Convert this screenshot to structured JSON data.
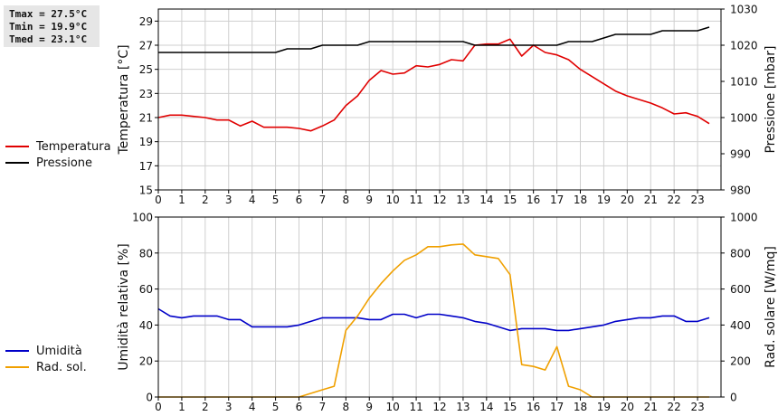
{
  "stats": {
    "tmax": "Tmax = 27.5°C",
    "tmin": "Tmin = 19.9°C",
    "tmed": "Tmed = 23.1°C"
  },
  "colors": {
    "temperature": "#e00000",
    "pressure": "#000000",
    "humidity": "#0000c8",
    "radiation": "#f0a000",
    "grid": "#cfcfcf"
  },
  "chart_data": [
    {
      "type": "line",
      "ylabel": "Temperatura [°C]",
      "y2label": "Pressione [mbar]",
      "xlim": [
        0,
        24
      ],
      "xticks": [
        0,
        1,
        2,
        3,
        4,
        5,
        6,
        7,
        8,
        9,
        10,
        11,
        12,
        13,
        14,
        15,
        16,
        17,
        18,
        19,
        20,
        21,
        22,
        23
      ],
      "ylim": [
        15,
        30
      ],
      "yticks": [
        15,
        17,
        19,
        21,
        23,
        25,
        27,
        29
      ],
      "y2lim": [
        980,
        1030
      ],
      "y2ticks": [
        980,
        990,
        1000,
        1010,
        1020,
        1030
      ],
      "grid": true,
      "series": [
        {
          "name": "Temperatura",
          "axis": "left",
          "color_key": "temperature",
          "x": [
            0,
            0.5,
            1,
            1.5,
            2,
            2.5,
            3,
            3.5,
            4,
            4.5,
            5,
            5.5,
            6,
            6.5,
            7,
            7.5,
            8,
            8.5,
            9,
            9.5,
            10,
            10.5,
            11,
            11.5,
            12,
            12.5,
            13,
            13.5,
            14,
            14.5,
            15,
            15.5,
            16,
            16.5,
            17,
            17.5,
            18,
            18.5,
            19,
            19.5,
            20,
            20.5,
            21,
            21.5,
            22,
            22.5,
            23,
            23.5
          ],
          "values": [
            21.0,
            21.2,
            21.2,
            21.1,
            21.0,
            20.8,
            20.8,
            20.3,
            20.7,
            20.2,
            20.2,
            20.2,
            20.1,
            19.9,
            20.3,
            20.8,
            22.0,
            22.8,
            24.1,
            24.9,
            24.6,
            24.7,
            25.3,
            25.2,
            25.4,
            25.8,
            25.7,
            27.0,
            27.1,
            27.1,
            27.5,
            26.1,
            27.0,
            26.4,
            26.2,
            25.8,
            25.0,
            24.4,
            23.8,
            23.2,
            22.8,
            22.5,
            22.2,
            21.8,
            21.3,
            21.4,
            21.1,
            20.5
          ]
        },
        {
          "name": "Pressione",
          "axis": "right",
          "color_key": "pressure",
          "x": [
            0,
            1,
            2,
            3,
            4,
            5,
            5.5,
            6,
            6.5,
            7,
            7.5,
            8,
            8.5,
            9,
            10,
            11,
            12,
            13,
            13.5,
            14,
            15,
            16,
            17,
            17.5,
            18,
            18.5,
            19,
            19.5,
            20,
            21,
            21.5,
            22,
            23,
            23.5
          ],
          "values": [
            1018,
            1018,
            1018,
            1018,
            1018,
            1018,
            1019,
            1019,
            1019,
            1020,
            1020,
            1020,
            1020,
            1021,
            1021,
            1021,
            1021,
            1021,
            1020,
            1020,
            1020,
            1020,
            1020,
            1021,
            1021,
            1021,
            1022,
            1023,
            1023,
            1023,
            1024,
            1024,
            1024,
            1025
          ]
        }
      ]
    },
    {
      "type": "line",
      "ylabel": "Umidità relativa [%]",
      "y2label": "Rad. solare [W/mq]",
      "xlim": [
        0,
        24
      ],
      "xticks": [
        0,
        1,
        2,
        3,
        4,
        5,
        6,
        7,
        8,
        9,
        10,
        11,
        12,
        13,
        14,
        15,
        16,
        17,
        18,
        19,
        20,
        21,
        22,
        23
      ],
      "ylim": [
        0,
        100
      ],
      "yticks": [
        0,
        20,
        40,
        60,
        80,
        100
      ],
      "y2lim": [
        0,
        1000
      ],
      "y2ticks": [
        0,
        200,
        400,
        600,
        800,
        1000
      ],
      "grid": true,
      "series": [
        {
          "name": "Umidità",
          "axis": "left",
          "color_key": "humidity",
          "x": [
            0,
            0.5,
            1,
            1.5,
            2,
            2.5,
            3,
            3.5,
            4,
            4.5,
            5,
            5.5,
            6,
            6.5,
            7,
            7.5,
            8,
            8.5,
            9,
            9.5,
            10,
            10.5,
            11,
            11.5,
            12,
            12.5,
            13,
            13.5,
            14,
            14.5,
            15,
            15.5,
            16,
            16.5,
            17,
            17.5,
            18,
            18.5,
            19,
            19.5,
            20,
            20.5,
            21,
            21.5,
            22,
            22.5,
            23,
            23.5
          ],
          "values": [
            49,
            45,
            44,
            45,
            45,
            45,
            43,
            43,
            39,
            39,
            39,
            39,
            40,
            42,
            44,
            44,
            44,
            44,
            43,
            43,
            46,
            46,
            44,
            46,
            46,
            45,
            44,
            42,
            41,
            39,
            37,
            38,
            38,
            38,
            37,
            37,
            38,
            39,
            40,
            42,
            43,
            44,
            44,
            45,
            45,
            42,
            42,
            44
          ]
        },
        {
          "name": "Rad. sol.",
          "axis": "right",
          "color_key": "radiation",
          "x": [
            0,
            1,
            2,
            3,
            4,
            5,
            6,
            6.5,
            7,
            7.5,
            8,
            8.5,
            9,
            9.5,
            10,
            10.5,
            11,
            11.5,
            12,
            12.5,
            13,
            13.5,
            14,
            14.5,
            15,
            15.5,
            16,
            16.5,
            17,
            17.5,
            18,
            18.5,
            19,
            20,
            21,
            22,
            23,
            23.5
          ],
          "values": [
            0,
            0,
            0,
            0,
            0,
            0,
            0,
            20,
            40,
            60,
            370,
            450,
            550,
            630,
            700,
            760,
            790,
            835,
            835,
            845,
            850,
            790,
            780,
            770,
            680,
            180,
            170,
            150,
            280,
            60,
            40,
            0,
            0,
            0,
            0,
            0,
            0,
            0
          ]
        }
      ]
    }
  ]
}
